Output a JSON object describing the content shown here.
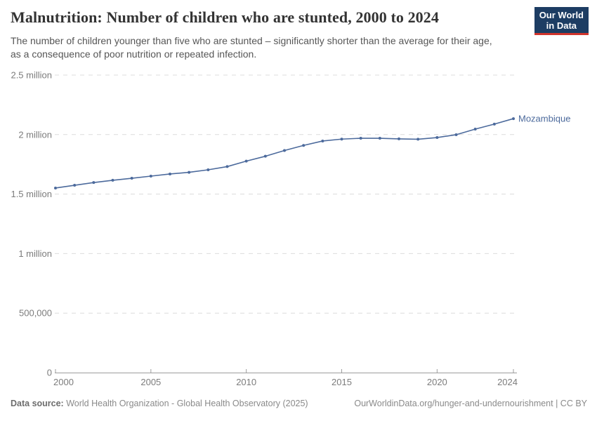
{
  "header": {
    "title": "Malnutrition: Number of children who are stunted, 2000 to 2024",
    "subtitle_lines": [
      "The number of children younger than five who are stunted – significantly shorter than the average for their age,",
      "as a consequence of poor nutrition or repeated infection."
    ],
    "logo_lines": [
      "Our World",
      "in Data"
    ],
    "logo_bg_color": "#1d3d63",
    "logo_accent_color": "#d0342c"
  },
  "chart_data": {
    "type": "line",
    "title": "Malnutrition: Number of children who are stunted, 2000 to 2024",
    "xlabel": "",
    "ylabel": "",
    "grid": "horizontal-dashed",
    "legend_position": "end-of-line-label",
    "xlim": [
      2000,
      2024
    ],
    "ylim": [
      0,
      2500000
    ],
    "x": [
      2000,
      2001,
      2002,
      2003,
      2004,
      2005,
      2006,
      2007,
      2008,
      2009,
      2010,
      2011,
      2012,
      2013,
      2014,
      2015,
      2016,
      2017,
      2018,
      2019,
      2020,
      2021,
      2022,
      2023,
      2024
    ],
    "x_ticks": [
      2000,
      2005,
      2010,
      2015,
      2020,
      2024
    ],
    "y_ticks": [
      {
        "value": 0,
        "label": "0"
      },
      {
        "value": 500000,
        "label": "500,000"
      },
      {
        "value": 1000000,
        "label": "1 million"
      },
      {
        "value": 1500000,
        "label": "1.5 million"
      },
      {
        "value": 2000000,
        "label": "2 million"
      },
      {
        "value": 2500000,
        "label": "2.5 million"
      }
    ],
    "series": [
      {
        "name": "Mozambique",
        "color": "#4c6a9c",
        "values": [
          1551000,
          1574000,
          1597000,
          1616000,
          1633000,
          1651000,
          1669000,
          1683000,
          1704000,
          1731000,
          1777000,
          1818000,
          1866000,
          1909000,
          1946000,
          1962000,
          1969000,
          1969000,
          1964000,
          1961000,
          1975000,
          1999000,
          2046000,
          2088000,
          2134000
        ]
      }
    ]
  },
  "footer": {
    "datasource_label": "Data source:",
    "datasource_text": "World Health Organization - Global Health Observatory (2025)",
    "link_text": "OurWorldinData.org/hunger-and-undernourishment | CC BY"
  }
}
